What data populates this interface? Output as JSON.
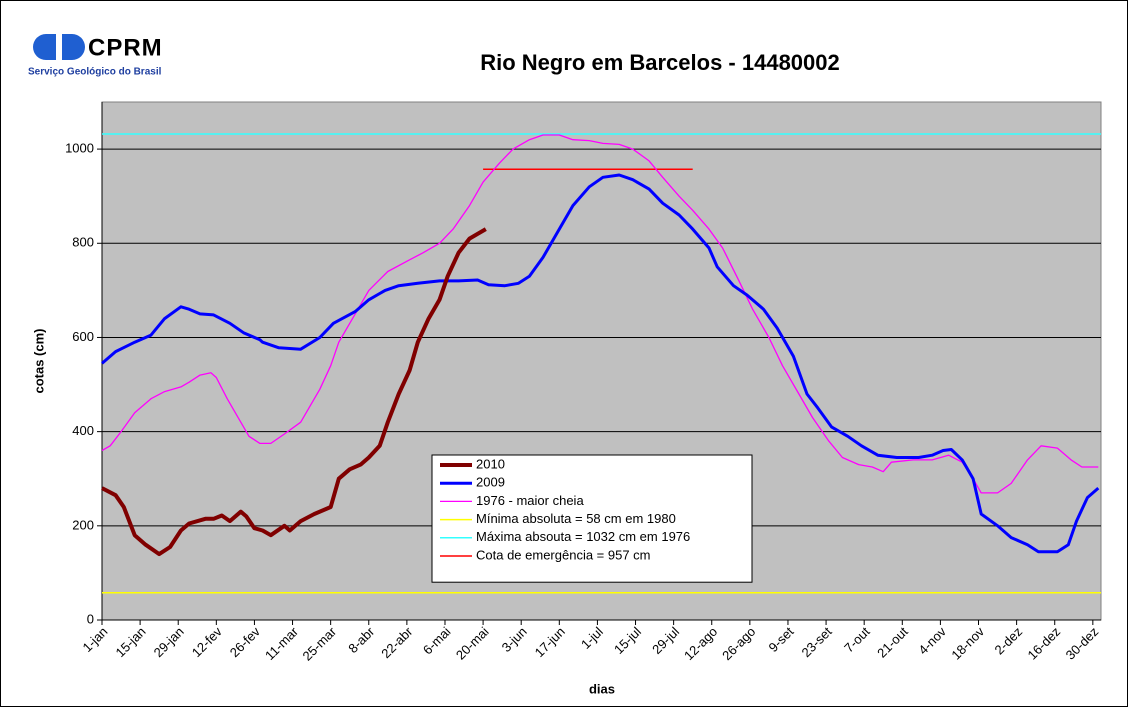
{
  "logo": {
    "name": "CPRM",
    "subtitle": "Serviço Geológico do Brasil"
  },
  "chart_data": {
    "type": "line",
    "title": "Rio Negro em Barcelos -  14480002",
    "x_label": "dias",
    "y_label": "cotas (cm)",
    "xlim": [
      0,
      367
    ],
    "ylim": [
      0,
      1100
    ],
    "yticks": [
      0,
      200,
      400,
      600,
      800,
      1000
    ],
    "xticks": [
      {
        "value": 0,
        "label": "1-jan"
      },
      {
        "value": 14,
        "label": "15-jan"
      },
      {
        "value": 28,
        "label": "29-jan"
      },
      {
        "value": 42,
        "label": "12-fev"
      },
      {
        "value": 56,
        "label": "26-fev"
      },
      {
        "value": 70,
        "label": "11-mar"
      },
      {
        "value": 84,
        "label": "25-mar"
      },
      {
        "value": 98,
        "label": "8-abr"
      },
      {
        "value": 112,
        "label": "22-abr"
      },
      {
        "value": 126,
        "label": "6-mai"
      },
      {
        "value": 140,
        "label": "20-mai"
      },
      {
        "value": 154,
        "label": "3-jun"
      },
      {
        "value": 168,
        "label": "17-jun"
      },
      {
        "value": 182,
        "label": "1-jul"
      },
      {
        "value": 196,
        "label": "15-jul"
      },
      {
        "value": 210,
        "label": "29-jul"
      },
      {
        "value": 224,
        "label": "12-ago"
      },
      {
        "value": 238,
        "label": "26-ago"
      },
      {
        "value": 252,
        "label": "9-set"
      },
      {
        "value": 266,
        "label": "23-set"
      },
      {
        "value": 280,
        "label": "7-out"
      },
      {
        "value": 294,
        "label": "21-out"
      },
      {
        "value": 308,
        "label": "4-nov"
      },
      {
        "value": 322,
        "label": "18-nov"
      },
      {
        "value": 336,
        "label": "2-dez"
      },
      {
        "value": 350,
        "label": "16-dez"
      },
      {
        "value": 364,
        "label": "30-dez"
      }
    ],
    "grid": true,
    "series": [
      {
        "name": "2010",
        "color": "#800000",
        "line_width": 4,
        "x": [
          0,
          5,
          8,
          12,
          16,
          21,
          25,
          29,
          32,
          38,
          41,
          44,
          47,
          51,
          53,
          56,
          59,
          62,
          67,
          69,
          73,
          78,
          84,
          87,
          91,
          95,
          98,
          102,
          105,
          109,
          113,
          116,
          120,
          124,
          127,
          131,
          135,
          138,
          141
        ],
        "values": [
          280,
          265,
          240,
          180,
          160,
          140,
          155,
          190,
          205,
          215,
          215,
          222,
          210,
          230,
          220,
          195,
          190,
          180,
          200,
          190,
          210,
          225,
          240,
          300,
          320,
          330,
          345,
          370,
          420,
          480,
          530,
          590,
          640,
          680,
          730,
          780,
          810,
          820,
          830
        ]
      },
      {
        "name": "2009",
        "color": "#0000ff",
        "line_width": 3,
        "x": [
          0,
          5,
          12,
          18,
          23,
          29,
          32,
          36,
          41,
          47,
          52,
          58,
          59,
          65,
          73,
          80,
          85,
          93,
          98,
          104,
          109,
          116,
          124,
          131,
          138,
          142,
          148,
          153,
          157,
          162,
          168,
          173,
          179,
          184,
          190,
          195,
          201,
          206,
          212,
          217,
          223,
          226,
          232,
          237,
          243,
          248,
          254,
          259,
          263,
          268,
          274,
          279,
          285,
          292,
          300,
          305,
          309,
          312,
          316,
          320,
          323,
          329,
          334,
          340,
          344,
          351,
          355,
          358,
          362,
          366
        ],
        "values": [
          545,
          570,
          590,
          605,
          640,
          665,
          660,
          650,
          648,
          630,
          610,
          595,
          590,
          578,
          575,
          600,
          630,
          655,
          680,
          700,
          710,
          715,
          720,
          720,
          722,
          712,
          710,
          715,
          730,
          770,
          830,
          880,
          920,
          940,
          945,
          935,
          915,
          885,
          860,
          830,
          790,
          750,
          710,
          690,
          660,
          620,
          560,
          480,
          450,
          410,
          390,
          370,
          350,
          345,
          345,
          350,
          360,
          362,
          340,
          300,
          225,
          200,
          175,
          160,
          145,
          145,
          160,
          210,
          260,
          280
        ]
      },
      {
        "name": "1976 - maior cheia",
        "color": "#ff00ff",
        "line_width": 1.3,
        "x": [
          0,
          3,
          7,
          12,
          18,
          23,
          29,
          32,
          36,
          40,
          42,
          46,
          51,
          54,
          58,
          62,
          67,
          73,
          76,
          80,
          84,
          87,
          93,
          98,
          105,
          113,
          118,
          124,
          129,
          135,
          140,
          146,
          151,
          157,
          162,
          168,
          173,
          179,
          184,
          190,
          195,
          201,
          206,
          212,
          217,
          223,
          228,
          234,
          239,
          245,
          250,
          256,
          261,
          267,
          272,
          278,
          283,
          287,
          290,
          298,
          305,
          311,
          316,
          320,
          323,
          329,
          334,
          340,
          345,
          351,
          356,
          360,
          366
        ],
        "values": [
          360,
          370,
          400,
          440,
          470,
          485,
          495,
          505,
          520,
          525,
          515,
          470,
          420,
          390,
          375,
          375,
          395,
          420,
          450,
          490,
          540,
          590,
          650,
          700,
          740,
          765,
          780,
          800,
          830,
          880,
          930,
          970,
          1000,
          1020,
          1030,
          1030,
          1020,
          1018,
          1012,
          1010,
          1000,
          975,
          940,
          900,
          870,
          830,
          790,
          720,
          660,
          600,
          540,
          480,
          430,
          380,
          345,
          330,
          325,
          315,
          335,
          340,
          340,
          350,
          335,
          300,
          270,
          270,
          290,
          340,
          370,
          365,
          340,
          325,
          325
        ]
      },
      {
        "name": "Mínima absoluta = 58 cm em 1980",
        "color": "#ffff00",
        "line_width": 1.5,
        "x": [
          0,
          367
        ],
        "values": [
          58,
          58
        ]
      },
      {
        "name": "Máxima absouta = 1032 cm em 1976",
        "color": "#33ffff",
        "line_width": 1.5,
        "x": [
          0,
          367
        ],
        "values": [
          1032,
          1032
        ]
      },
      {
        "name": "Cota de emergência =  957 cm",
        "color": "#ff0000",
        "line_width": 1.5,
        "x": [
          140,
          217
        ],
        "values": [
          957,
          957
        ]
      }
    ]
  }
}
